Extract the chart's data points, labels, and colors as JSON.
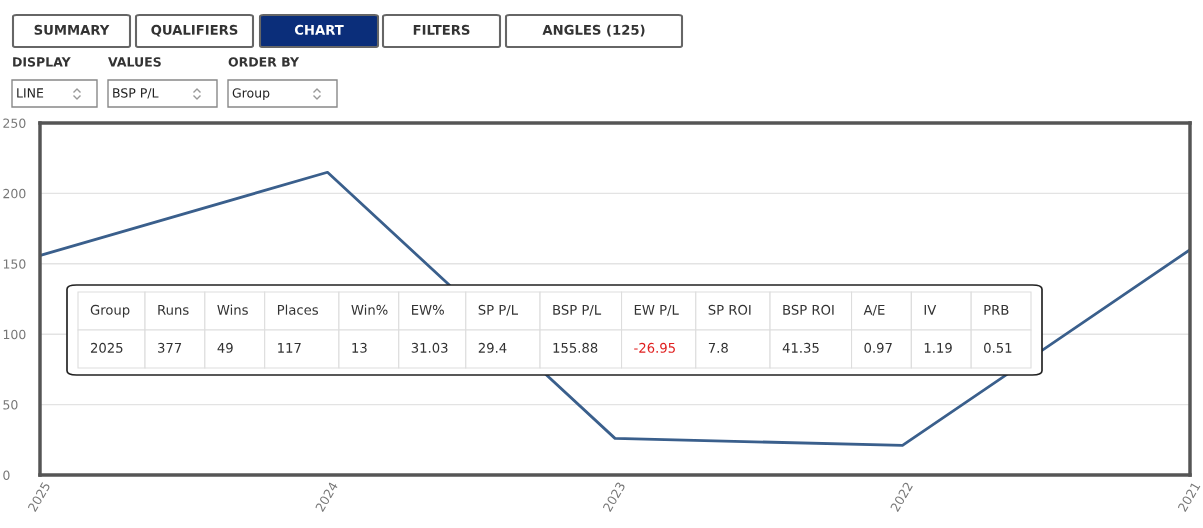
{
  "chart_data": {
    "type": "line",
    "categories": [
      "2025",
      "2024",
      "2023",
      "2022",
      "2021"
    ],
    "series": [
      {
        "color": "#3a5f8c",
        "values": [
          155.88,
          215,
          26,
          21,
          160
        ]
      }
    ],
    "ylim": [
      0,
      250
    ],
    "yticks": [
      0,
      50,
      100,
      150,
      200,
      250
    ],
    "grid": "y",
    "legend": false,
    "marker": "none",
    "line_style": "solid",
    "annotations": [
      "SUMMARY",
      "QUALIFIERS",
      "CHART",
      "FILTERS",
      "ANGLES (125)",
      "DISPLAY",
      "VALUES",
      "ORDER BY",
      "LINE",
      "BSP P/L",
      "Group",
      "Group",
      "Runs",
      "Wins",
      "Places",
      "Win%",
      "EW%",
      "SP P/L",
      "BSP P/L",
      "EW P/L",
      "SP ROI",
      "BSP ROI",
      "A/E",
      "IV",
      "PRB",
      "2025",
      "377",
      "49",
      "117",
      "13",
      "31.03",
      "29.4",
      "155.88",
      "-26.95",
      "7.8",
      "41.35",
      "0.97",
      "1.19",
      "0.51"
    ]
  }
}
